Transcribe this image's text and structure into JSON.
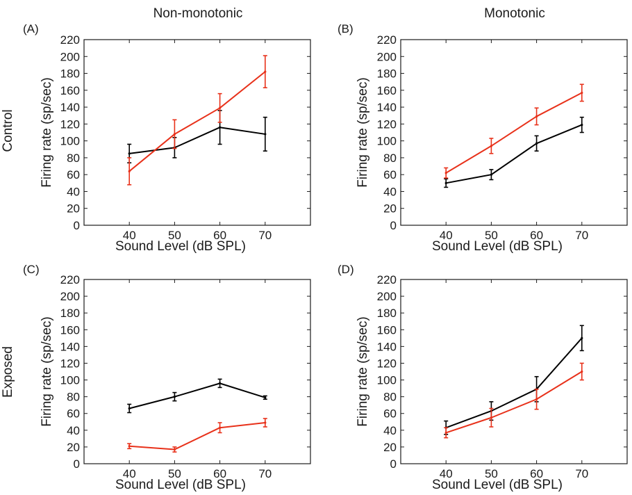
{
  "column_titles": [
    "Non-monotonic",
    "Monotonic"
  ],
  "row_labels": [
    "Control",
    "Exposed"
  ],
  "colors": {
    "series_a": "#000000",
    "series_b": "#e8311a",
    "axis": "#1a1a1a"
  },
  "chart_data": [
    {
      "panel_label": "(A)",
      "type": "line",
      "xlabel": "Sound Level (dB SPL)",
      "ylabel": "Firing rate (sp/sec)",
      "xlim": [
        30,
        80
      ],
      "ylim": [
        0,
        220
      ],
      "x_ticks": [
        40,
        50,
        60,
        70
      ],
      "y_ticks": [
        0,
        20,
        40,
        60,
        80,
        100,
        120,
        140,
        160,
        180,
        200,
        220
      ],
      "x": [
        40,
        50,
        60,
        70
      ],
      "series": [
        {
          "color": "#000000",
          "values": [
            85,
            92,
            116,
            108
          ],
          "errors": [
            11,
            12,
            20,
            20
          ]
        },
        {
          "color": "#e8311a",
          "values": [
            64,
            108,
            139,
            182
          ],
          "errors": [
            16,
            17,
            17,
            19
          ]
        }
      ]
    },
    {
      "panel_label": "(B)",
      "type": "line",
      "xlabel": "Sound Level (dB SPL)",
      "ylabel": "Firing rate (sp/sec)",
      "xlim": [
        30,
        80
      ],
      "ylim": [
        0,
        220
      ],
      "x_ticks": [
        40,
        50,
        60,
        70
      ],
      "y_ticks": [
        0,
        20,
        40,
        60,
        80,
        100,
        120,
        140,
        160,
        180,
        200,
        220
      ],
      "x": [
        40,
        50,
        60,
        70
      ],
      "series": [
        {
          "color": "#000000",
          "values": [
            50,
            60,
            97,
            119
          ],
          "errors": [
            5,
            6,
            9,
            9
          ]
        },
        {
          "color": "#e8311a",
          "values": [
            62,
            94,
            129,
            157
          ],
          "errors": [
            6,
            9,
            10,
            10
          ]
        }
      ]
    },
    {
      "panel_label": "(C)",
      "type": "line",
      "xlabel": "Sound Level (dB SPL)",
      "ylabel": "Firing rate (sp/sec)",
      "xlim": [
        30,
        80
      ],
      "ylim": [
        0,
        220
      ],
      "x_ticks": [
        40,
        50,
        60,
        70
      ],
      "y_ticks": [
        0,
        20,
        40,
        60,
        80,
        100,
        120,
        140,
        160,
        180,
        200,
        220
      ],
      "x": [
        40,
        50,
        60,
        70
      ],
      "series": [
        {
          "color": "#000000",
          "values": [
            66,
            80,
            96,
            79
          ],
          "errors": [
            5,
            5,
            5,
            2
          ]
        },
        {
          "color": "#e8311a",
          "values": [
            21,
            17,
            43,
            49
          ],
          "errors": [
            3,
            3,
            6,
            5
          ]
        }
      ]
    },
    {
      "panel_label": "(D)",
      "type": "line",
      "xlabel": "Sound Level (dB SPL)",
      "ylabel": "Firing rate (sp/sec)",
      "xlim": [
        30,
        80
      ],
      "ylim": [
        0,
        220
      ],
      "x_ticks": [
        40,
        50,
        60,
        70
      ],
      "y_ticks": [
        0,
        20,
        40,
        60,
        80,
        100,
        120,
        140,
        160,
        180,
        200,
        220
      ],
      "x": [
        40,
        50,
        60,
        70
      ],
      "series": [
        {
          "color": "#000000",
          "values": [
            43,
            63,
            89,
            150
          ],
          "errors": [
            8,
            11,
            15,
            15
          ]
        },
        {
          "color": "#e8311a",
          "values": [
            37,
            55,
            77,
            110
          ],
          "errors": [
            6,
            11,
            12,
            10
          ]
        }
      ]
    }
  ]
}
